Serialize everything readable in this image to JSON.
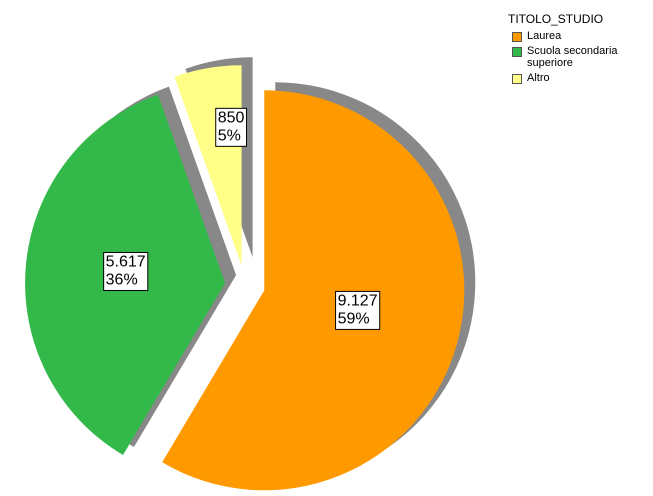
{
  "chart_data": {
    "type": "pie",
    "legend_title": "TITOLO_STUDIO",
    "categories": [
      "Laurea",
      "Scuola secondaria superiore",
      "Altro"
    ],
    "values": [
      9127,
      5617,
      850
    ],
    "value_labels": [
      "9.127",
      "5.617",
      "850"
    ],
    "percent_labels": [
      "59%",
      "36%",
      "5%"
    ],
    "colors": [
      "#ff9900",
      "#33b84a",
      "#ffff88"
    ],
    "exploded": true,
    "shadow": true,
    "legend": "top-right"
  }
}
